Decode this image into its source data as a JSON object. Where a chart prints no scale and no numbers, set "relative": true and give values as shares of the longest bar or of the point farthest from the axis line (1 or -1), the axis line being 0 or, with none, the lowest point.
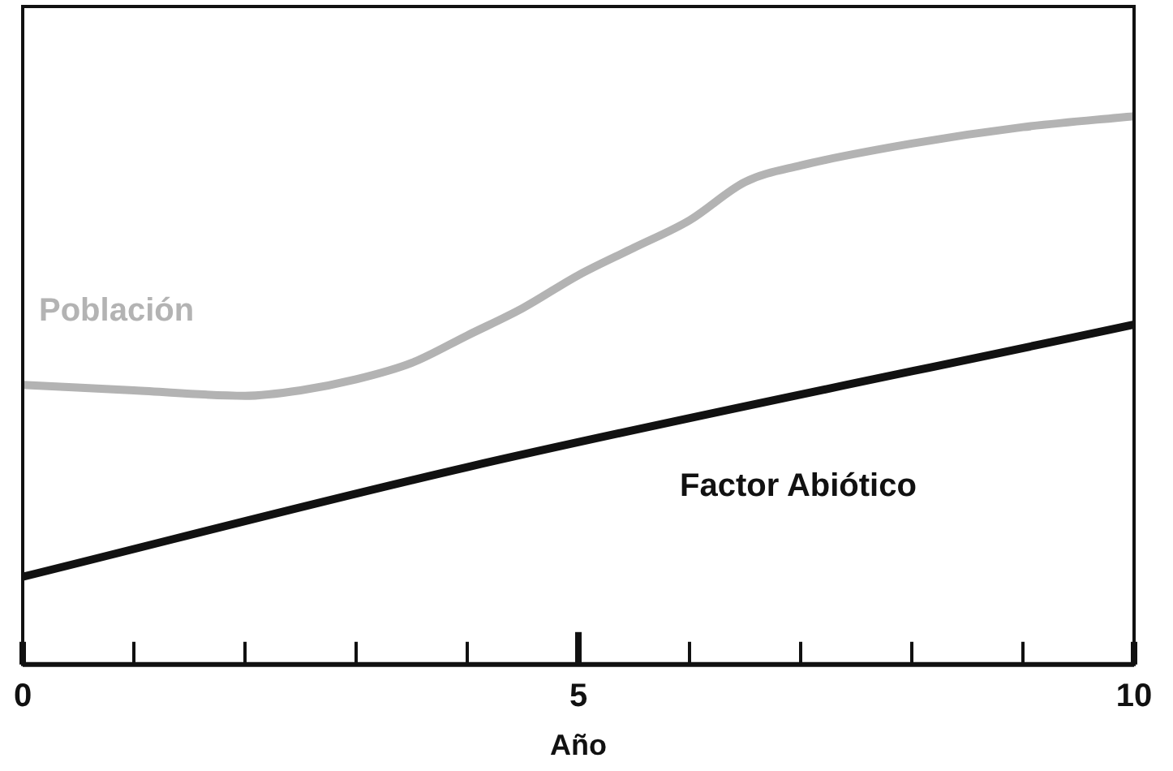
{
  "chart_data": {
    "type": "line",
    "relative": true,
    "xlabel": "Año",
    "xlim": [
      0,
      10
    ],
    "xticks": [
      0,
      {
        "value": 1,
        "label": null
      },
      {
        "value": 2,
        "label": null
      },
      {
        "value": 3,
        "label": null
      },
      {
        "value": 4,
        "label": null
      },
      5,
      {
        "value": 6,
        "label": null
      },
      {
        "value": 7,
        "label": null
      },
      {
        "value": 8,
        "label": null
      },
      {
        "value": 9,
        "label": null
      },
      10
    ],
    "series": [
      {
        "name": "Población",
        "color": "#b3b3b3",
        "x": [
          0,
          1,
          2,
          2.5,
          3,
          3.5,
          4,
          4.5,
          5,
          5.5,
          6,
          6.5,
          7,
          8,
          9,
          10
        ],
        "values": [
          0.51,
          0.5,
          0.49,
          0.5,
          0.52,
          0.55,
          0.6,
          0.65,
          0.71,
          0.76,
          0.81,
          0.88,
          0.91,
          0.95,
          0.98,
          1
        ]
      },
      {
        "name": "Factor Abiótico",
        "color": "#111111",
        "x": [
          0,
          4,
          10
        ],
        "values": [
          0.16,
          0.36,
          0.62
        ]
      }
    ],
    "grid": false,
    "legend": false,
    "marker": "none",
    "line_style": "solid"
  }
}
